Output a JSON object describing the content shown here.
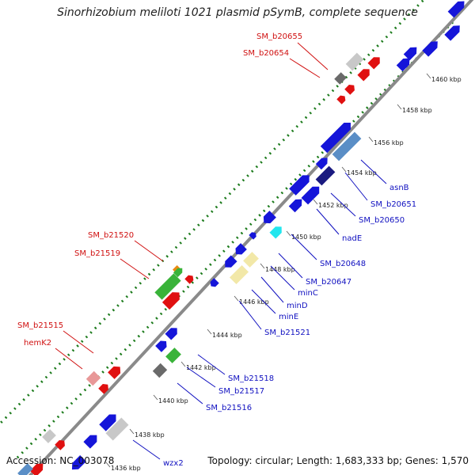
{
  "title": "Sinorhizobium meliloti 1021 plasmid pSymB, complete sequence",
  "accession": "Accession: NC_003078",
  "summary": "Topology: circular; Length: 1,683,333 bp; Genes: 1,570",
  "colors": {
    "backbone": "#8a8a8a",
    "ring": "#1a7a1a",
    "blue": "#1515d9",
    "red": "#e01010",
    "label_red": "#d01010",
    "label_blue": "#1010c0",
    "grey": "#c8c8c8",
    "dark_grey": "#6a6a6a",
    "green": "#39b339",
    "orange": "#e88a12",
    "cyan": "#22e6ee",
    "pale_yellow": "#f2e8a8",
    "pink": "#e89898",
    "steel_blue": "#5a8ec6",
    "navy": "#1a1a80"
  },
  "ticks": [
    "1436 kbp",
    "1438 kbp",
    "1440 kbp",
    "1442 kbp",
    "1444 kbp",
    "1446 kbp",
    "1448 kbp",
    "1450 kbp",
    "1452 kbp",
    "1454 kbp",
    "1456 kbp",
    "1458 kbp",
    "1460 kbp"
  ],
  "red_labels": [
    "SM_b20655",
    "SM_b20654",
    "SM_b21520",
    "SM_b21519",
    "SM_b21515",
    "hemK2"
  ],
  "blue_labels": [
    "asnB",
    "SM_b20651",
    "SM_b20650",
    "nadE",
    "SM_b20648",
    "SM_b20647",
    "minC",
    "minD",
    "minE",
    "SM_b21521",
    "SM_b21518",
    "SM_b21517",
    "SM_b21516",
    "wzx2"
  ]
}
